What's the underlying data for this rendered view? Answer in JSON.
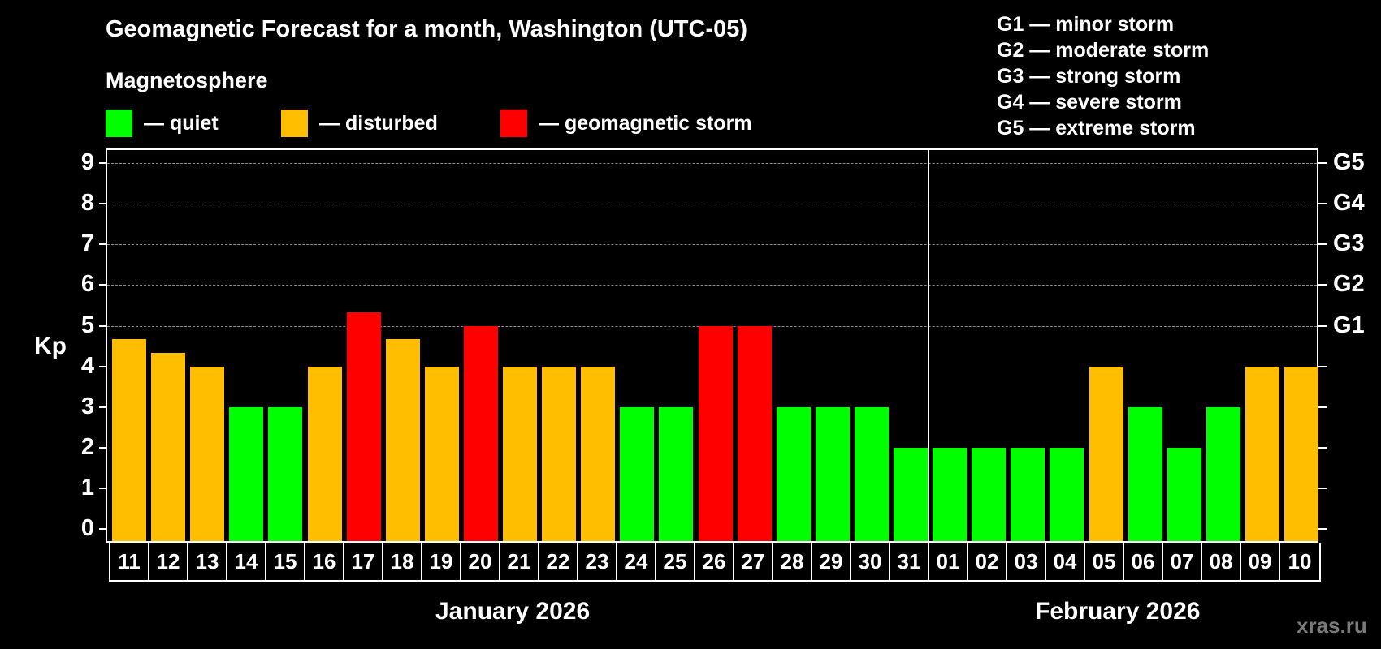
{
  "header": {
    "title": "Geomagnetic Forecast for a month, Washington (UTC-05)",
    "subtitle": "Magnetosphere"
  },
  "legend": [
    {
      "label": "— quiet",
      "color": "#00ff00"
    },
    {
      "label": "— disturbed",
      "color": "#ffbf00"
    },
    {
      "label": "— geomagnetic storm",
      "color": "#ff0000"
    }
  ],
  "g_scale": [
    "G1 — minor storm",
    "G2 — moderate storm",
    "G3 — strong storm",
    "G4 — severe storm",
    "G5 — extreme storm"
  ],
  "axes": {
    "ylabel": "Kp",
    "yticks": [
      "0",
      "1",
      "2",
      "3",
      "4",
      "5",
      "6",
      "7",
      "8",
      "9"
    ],
    "right_ticks": [
      {
        "kp": 5,
        "label": "G1"
      },
      {
        "kp": 6,
        "label": "G2"
      },
      {
        "kp": 7,
        "label": "G3"
      },
      {
        "kp": 8,
        "label": "G4"
      },
      {
        "kp": 9,
        "label": "G5"
      }
    ]
  },
  "months": {
    "left": "January 2026",
    "right": "February 2026"
  },
  "watermark": "xras.ru",
  "colors": {
    "quiet": "#00ff00",
    "disturbed": "#ffbf00",
    "storm": "#ff0000",
    "background": "#000000",
    "grid": "#8a8a8a"
  },
  "chart_data": {
    "type": "bar",
    "title": "Geomagnetic Forecast for a month, Washington (UTC-05)",
    "xlabel": "",
    "ylabel": "Kp",
    "ylim": [
      0,
      9
    ],
    "grid": "horizontal dashed at Kp 5-9",
    "legend_position": "top",
    "categories": [
      "11",
      "12",
      "13",
      "14",
      "15",
      "16",
      "17",
      "18",
      "19",
      "20",
      "21",
      "22",
      "23",
      "24",
      "25",
      "26",
      "27",
      "28",
      "29",
      "30",
      "31",
      "01",
      "02",
      "03",
      "04",
      "05",
      "06",
      "07",
      "08",
      "09",
      "10"
    ],
    "month_groups": [
      {
        "label": "January 2026",
        "from": "11",
        "to": "31"
      },
      {
        "label": "February 2026",
        "from": "01",
        "to": "10"
      }
    ],
    "values": [
      4.67,
      4.33,
      4,
      3,
      3,
      4,
      5.33,
      4.67,
      4,
      5,
      4,
      4,
      4,
      3,
      3,
      5,
      5,
      3,
      3,
      3,
      2,
      2,
      2,
      2,
      2,
      4,
      3,
      2,
      3,
      4,
      4
    ],
    "status": [
      "disturbed",
      "disturbed",
      "disturbed",
      "quiet",
      "quiet",
      "disturbed",
      "storm",
      "disturbed",
      "disturbed",
      "storm",
      "disturbed",
      "disturbed",
      "disturbed",
      "quiet",
      "quiet",
      "storm",
      "storm",
      "quiet",
      "quiet",
      "quiet",
      "quiet",
      "quiet",
      "quiet",
      "quiet",
      "quiet",
      "disturbed",
      "quiet",
      "quiet",
      "quiet",
      "disturbed",
      "disturbed"
    ]
  }
}
